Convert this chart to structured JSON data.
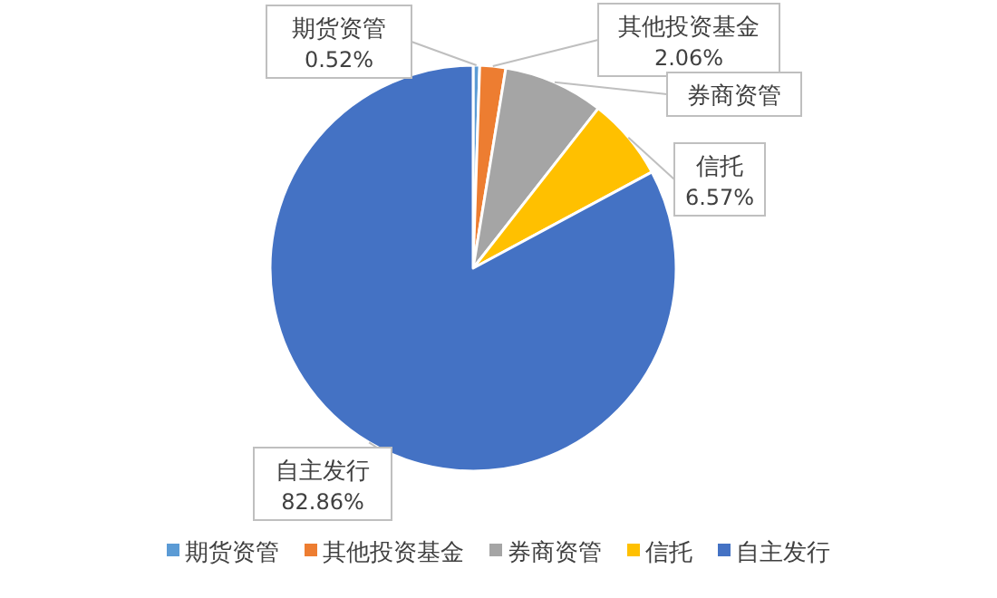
{
  "chart_data": {
    "type": "pie",
    "categories": [
      "期货资管",
      "其他投资基金",
      "券商资管",
      "信托",
      "自主发行"
    ],
    "values": [
      0.52,
      2.06,
      7.99,
      6.57,
      82.86
    ],
    "colors": [
      "#5b9bd5",
      "#ed7d31",
      "#a5a5a5",
      "#ffc000",
      "#4472c4"
    ],
    "value_labels": [
      "0.52%",
      "2.06%",
      null,
      "6.57%",
      "82.86%"
    ],
    "legend": "bottom"
  }
}
